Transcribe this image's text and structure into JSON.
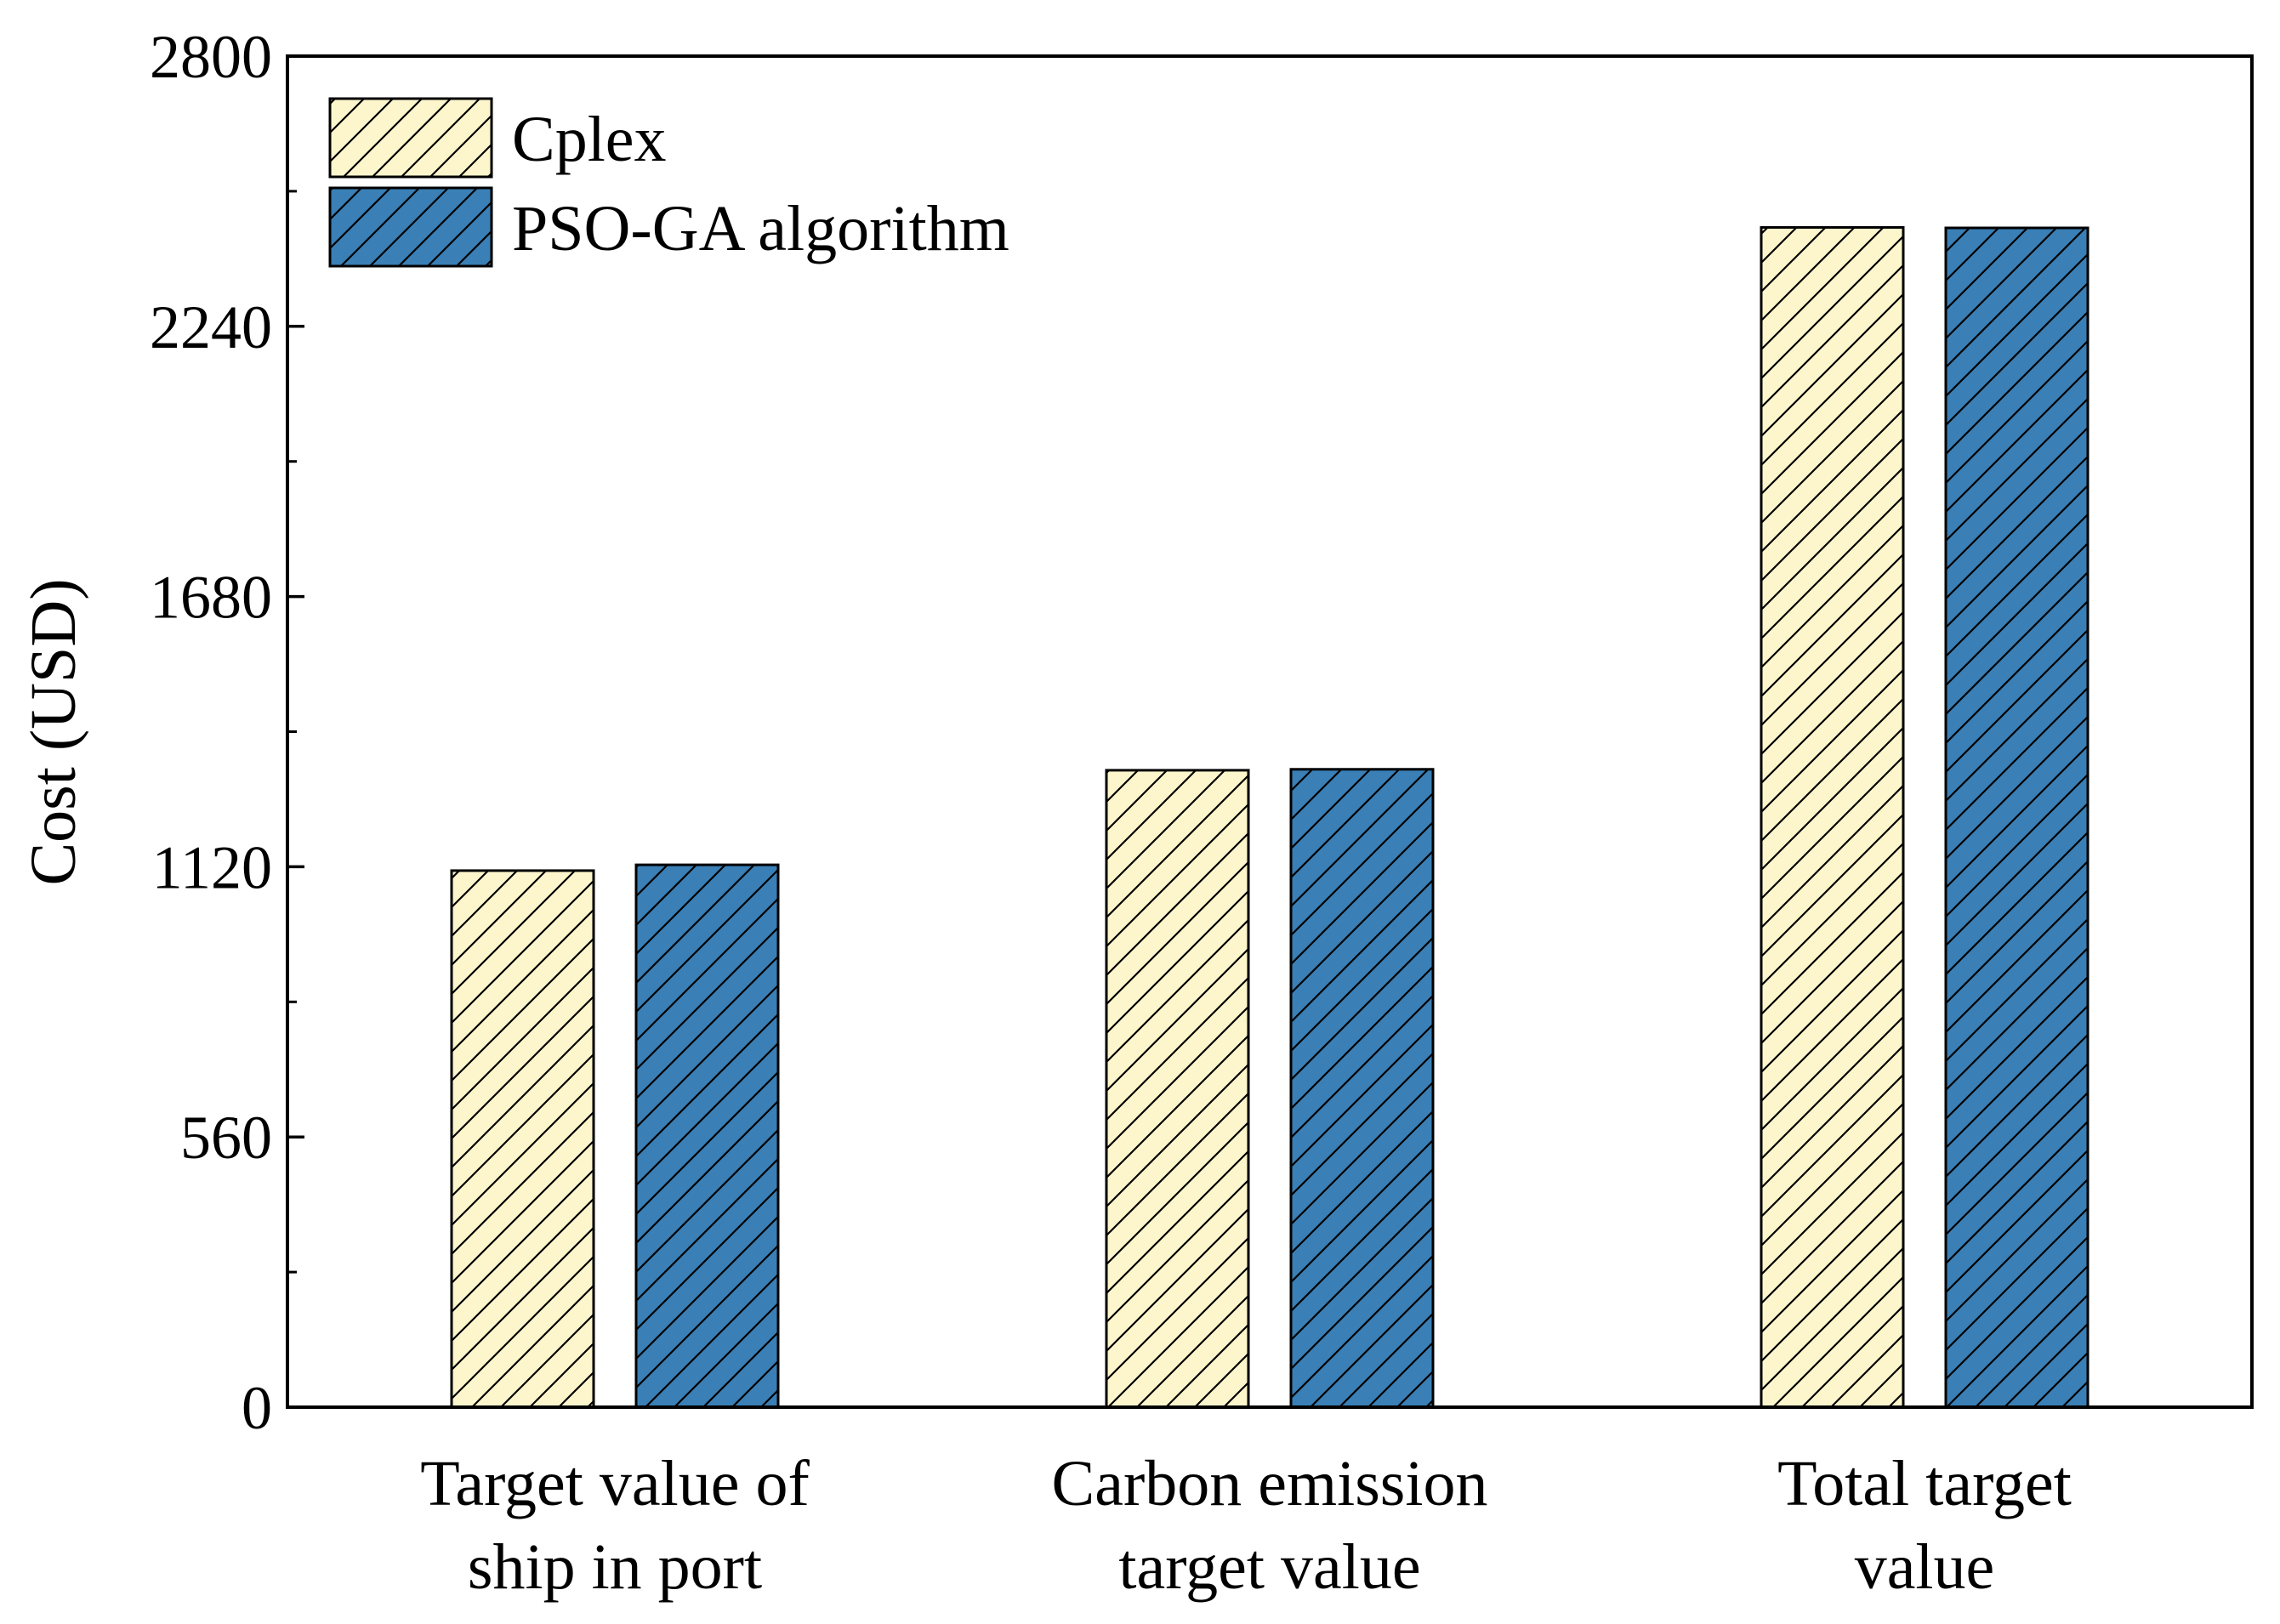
{
  "chart_data": {
    "type": "bar",
    "title": "",
    "xlabel": "",
    "ylabel": "Cost (USD)",
    "ylim": [
      0,
      2800
    ],
    "yticks": [
      "0",
      "560",
      "1120",
      "1680",
      "2240",
      "2800"
    ],
    "categories": [
      [
        "Target value of",
        "ship in port"
      ],
      [
        "Carbon emission",
        "target value"
      ],
      [
        "Total target",
        "value"
      ]
    ],
    "series": [
      {
        "name": "Cplex",
        "values": [
          1112,
          1320,
          2445
        ],
        "color": "#FDF6CC"
      },
      {
        "name": "PSO-GA algorithm",
        "values": [
          1124,
          1322,
          2444
        ],
        "color": "#3A7FB5"
      }
    ],
    "legend_position": "top-left",
    "grid": false
  }
}
